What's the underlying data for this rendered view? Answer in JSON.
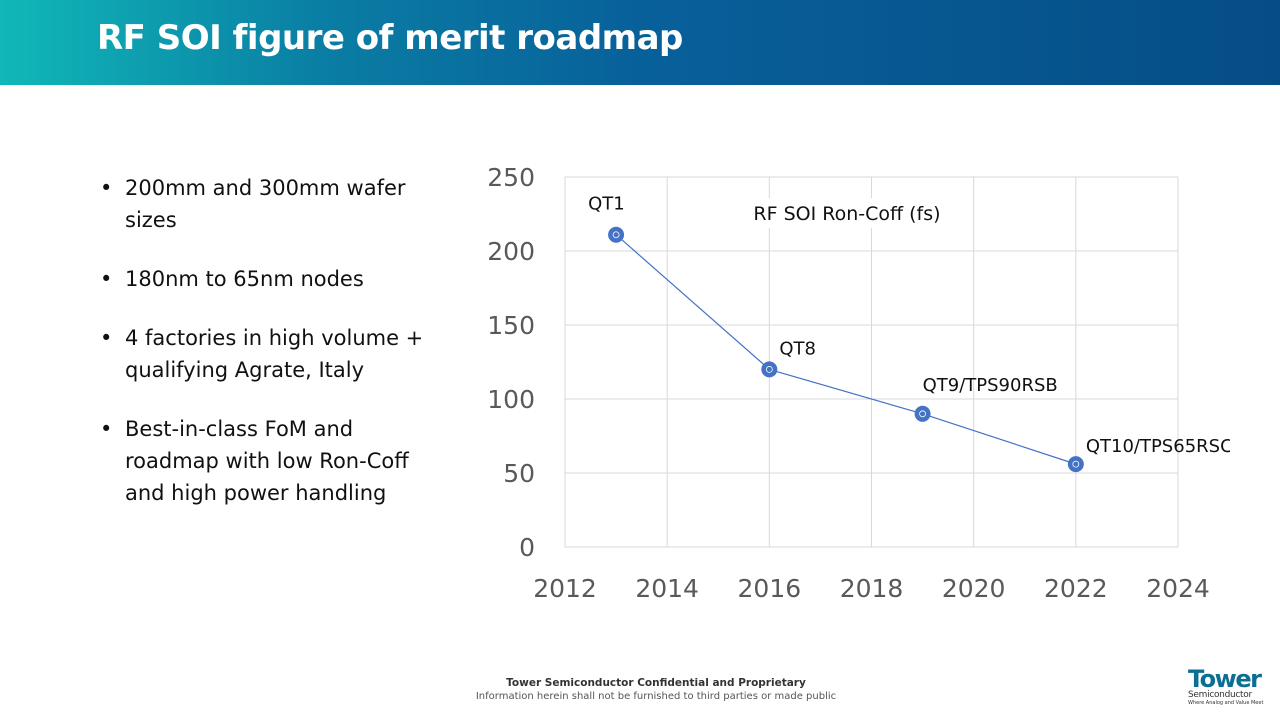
{
  "slide": {
    "title": "RF SOI figure of merit roadmap",
    "header_colors": [
      "#10b8b8",
      "#064d86"
    ]
  },
  "bullets": [
    "200mm and 300mm wafer sizes",
    "180nm to 65nm nodes",
    "4 factories in high volume + qualifying Agrate, Italy",
    "Best-in-class FoM and roadmap with low Ron-Coff and high power handling"
  ],
  "chart_data": {
    "type": "scatter",
    "title": "RF SOI Ron-Coff (fs)",
    "xlabel": "",
    "ylabel": "",
    "xlim": [
      2012,
      2024
    ],
    "ylim": [
      0,
      250
    ],
    "xticks": [
      2012,
      2014,
      2016,
      2018,
      2020,
      2022,
      2024
    ],
    "yticks": [
      0,
      50,
      100,
      150,
      200,
      250
    ],
    "grid": true,
    "series": [
      {
        "color": "#4472c4",
        "points": [
          {
            "x": 2013,
            "y": 211,
            "label": "QT1"
          },
          {
            "x": 2016,
            "y": 120,
            "label": "QT8"
          },
          {
            "x": 2019,
            "y": 90,
            "label": "QT9/TPS90RSB"
          },
          {
            "x": 2022,
            "y": 56,
            "label": "QT10/TPS65RSC"
          }
        ]
      }
    ]
  },
  "footer": {
    "line1": "Tower Semiconductor Confidential and Proprietary",
    "line2": "Information herein shall not be furnished to third parties or made public"
  },
  "logo": {
    "name": "Tower",
    "sub": "Semiconductor",
    "tagline": "Where Analog and Value Meet"
  }
}
